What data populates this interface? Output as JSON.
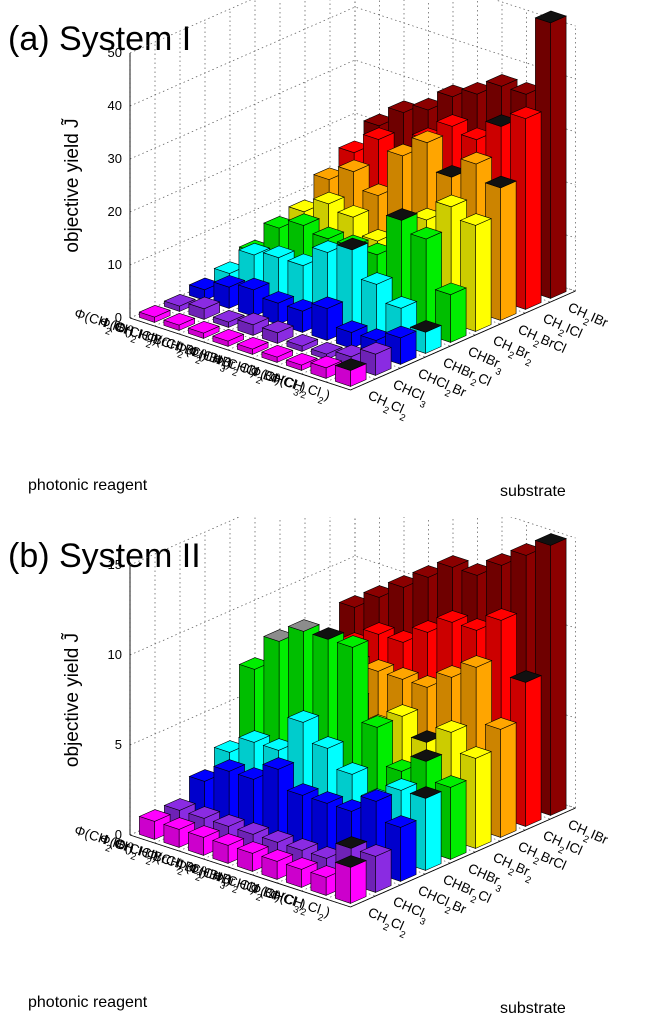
{
  "chart_data": [
    {
      "type": "bar3d",
      "title": "(a) System I",
      "zlabel": "objective yield J̃",
      "xlabel": "photonic reagent",
      "ylabel": "substrate",
      "zlim": [
        0,
        50
      ],
      "zticks": [
        "0",
        "10",
        "20",
        "30",
        "40",
        "50"
      ],
      "grid": true,
      "photonic_reagents": [
        "Φ(CH2IBr)",
        "Φ(CH2ICl)",
        "Φ(CH2BrCl)",
        "Φ(CH2Br2)",
        "Φ(CHBr3)",
        "Φ(CHBr2Cl)",
        "Φ(CHCl2Br)",
        "Φ(CHCl3)",
        "Φ(CH2Cl2)"
      ],
      "substrates": [
        "CH2Cl2",
        "CHCl3",
        "CHCl2Br",
        "CHBr2Cl",
        "CHBr3",
        "CH2Br2",
        "CH2BrCl",
        "CH2ICl",
        "CH2IBr"
      ],
      "substrate_colors": [
        "#ff00ff",
        "#8a2be2",
        "#0000ff",
        "#00ffff",
        "#00ee00",
        "#ffff00",
        "#ffa500",
        "#ff0000",
        "#8b0000"
      ],
      "values": [
        [
          1,
          1,
          2,
          3,
          5,
          6,
          8,
          11,
          14
        ],
        [
          1,
          2,
          4,
          8,
          11,
          12,
          16,
          19,
          22
        ],
        [
          1,
          1,
          5,
          9,
          13,
          15,
          19,
          23,
          26
        ],
        [
          1,
          2,
          4,
          9,
          12,
          14,
          16,
          19,
          28
        ],
        [
          1,
          2,
          4,
          13,
          12,
          11,
          25,
          26,
          32
        ],
        [
          1,
          1,
          6,
          15,
          12,
          15,
          29,
          30,
          34
        ],
        [
          1,
          1,
          3,
          10,
          20,
          18,
          24,
          29,
          37
        ],
        [
          2,
          2,
          3,
          7,
          18,
          22,
          28,
          33,
          37
        ],
        [
          3,
          4,
          5,
          4,
          9,
          20,
          25,
          36,
          52
        ]
      ],
      "max_markers": [
        [
          8,
          0
        ],
        [
          8,
          3
        ],
        [
          7,
          7
        ],
        [
          8,
          6
        ],
        [
          5,
          3
        ],
        [
          6,
          4
        ],
        [
          8,
          8
        ],
        [
          6,
          6
        ]
      ],
      "max_marker_color": "#111111"
    },
    {
      "type": "bar3d",
      "title": "(b) System II",
      "zlabel": "objective yield J̃",
      "xlabel": "photonic reagent",
      "ylabel": "substrate",
      "zlim": [
        0,
        15
      ],
      "zticks": [
        "0",
        "5",
        "10",
        "15"
      ],
      "grid": true,
      "photonic_reagents": [
        "Φ(CH2IBr)",
        "Φ(CH2ICl)",
        "Φ(CH2BrCl)",
        "Φ(CH2Br2)",
        "Φ(CHBr3)",
        "Φ(CHBr2Cl)",
        "Φ(CHCl2Br)",
        "Φ(CHCl3)",
        "Φ(CH2Cl2)"
      ],
      "substrates": [
        "CH2Cl2",
        "CHCl3",
        "CHCl2Br",
        "CHBr2Cl",
        "CHBr3",
        "CH2Br2",
        "CH2BrCl",
        "CH2ICl",
        "CH2IBr"
      ],
      "substrate_colors": [
        "#ff00ff",
        "#8a2be2",
        "#0000ff",
        "#00ffff",
        "#00ee00",
        "#ffff00",
        "#ffa500",
        "#ff0000",
        "#8b0000"
      ],
      "values": [
        [
          1,
          1,
          2,
          3,
          7,
          4,
          5,
          6,
          8
        ],
        [
          1,
          1,
          3,
          4,
          9,
          5,
          6,
          7,
          9
        ],
        [
          1,
          1,
          3,
          4,
          10,
          5,
          7,
          8,
          10
        ],
        [
          1,
          1,
          4,
          6,
          10,
          6,
          7,
          8,
          11
        ],
        [
          1,
          1,
          3,
          5,
          10,
          5,
          7,
          9,
          12
        ],
        [
          1,
          1,
          3,
          4,
          6,
          6,
          7,
          10,
          12
        ],
        [
          1,
          1,
          3,
          3,
          4,
          5,
          8,
          10,
          13
        ],
        [
          1,
          2,
          4,
          4,
          5,
          6,
          9,
          11,
          14
        ],
        [
          2,
          2,
          3,
          4,
          4,
          5,
          6,
          8,
          15
        ]
      ],
      "max_markers": [
        [
          8,
          0
        ],
        [
          7,
          1
        ],
        [
          8,
          3
        ],
        [
          7,
          4
        ],
        [
          3,
          4
        ],
        [
          6,
          5
        ],
        [
          8,
          7
        ],
        [
          8,
          8
        ]
      ],
      "max_marker_color": "#111111",
      "gray_markers": [
        [
          1,
          4
        ],
        [
          2,
          4
        ],
        [
          3,
          4
        ]
      ],
      "gray_marker_color": "#8c8c8c"
    }
  ]
}
